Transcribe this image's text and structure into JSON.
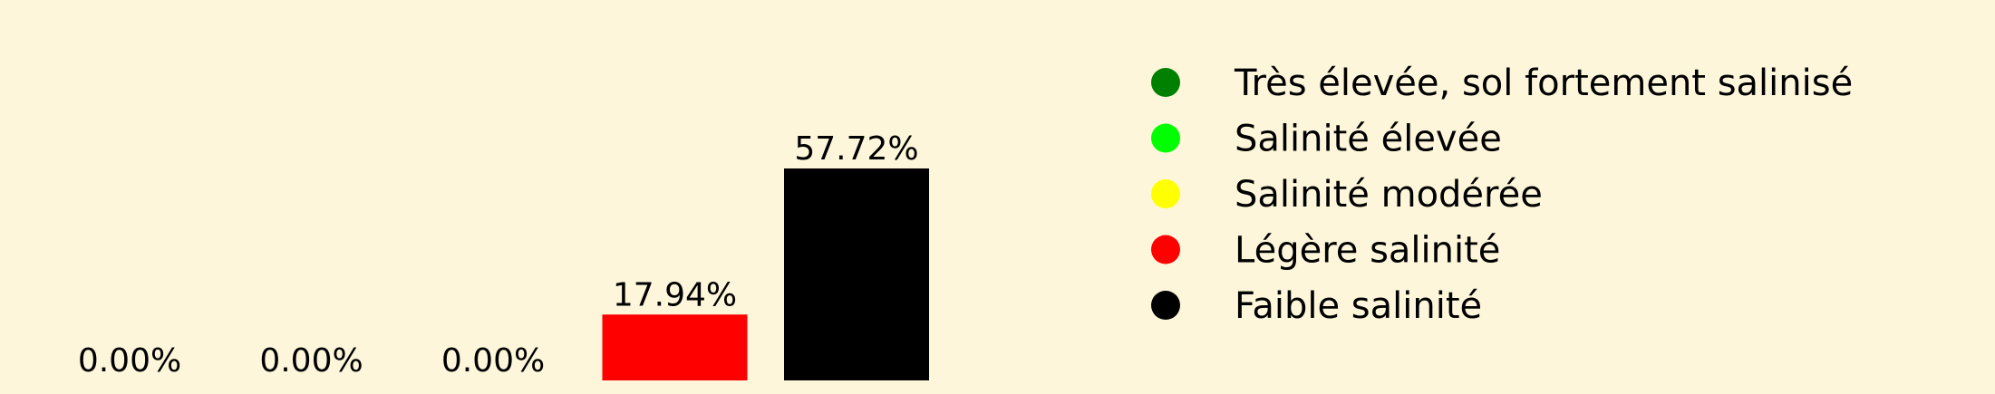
{
  "chart_data": {
    "type": "bar",
    "categories": [
      "Très élevée, sol fortement salinisé",
      "Salinité élevée",
      "Salinité modérée",
      "Légère salinité",
      "Faible salinité"
    ],
    "values": [
      0.0,
      0.0,
      0.0,
      17.94,
      57.72
    ],
    "value_labels": [
      "0.00%",
      "0.00%",
      "0.00%",
      "17.94%",
      "57.72%"
    ],
    "colors": [
      "#008000",
      "#00ff00",
      "#ffff00",
      "#ff0000",
      "#000000"
    ],
    "ylim": [
      0,
      57.72
    ],
    "grid": false,
    "axes_visible": false,
    "legend_position": "right",
    "background": "#fdf6da"
  }
}
